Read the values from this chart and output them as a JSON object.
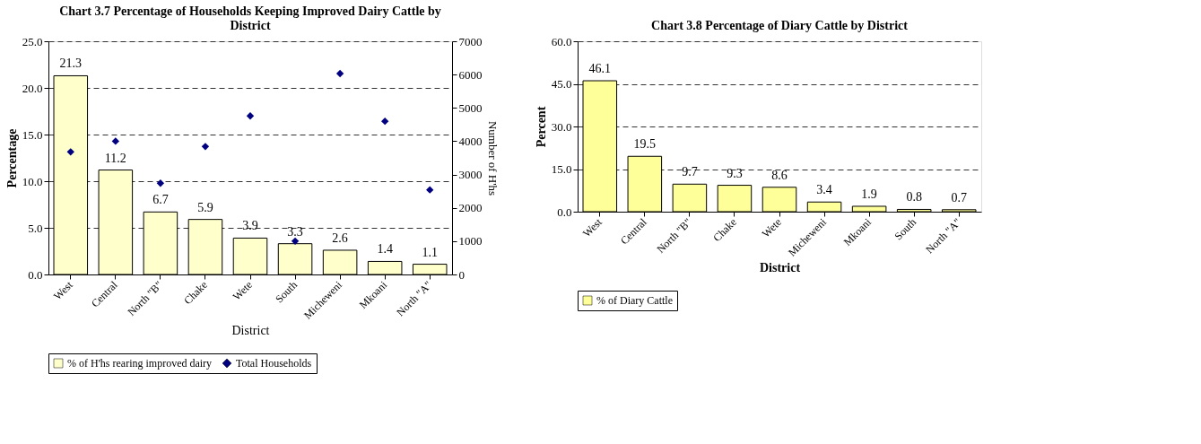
{
  "chart_data": [
    {
      "type": "bar",
      "title": "Chart 3.7  Percentage of Households Keeping Improved Dairy Cattle by District",
      "xlabel": "District",
      "ylabel": "Percentage",
      "y2label": "Number of H'hs",
      "categories": [
        "West",
        "Central",
        "North \"B\"",
        "Chake",
        "Wete",
        "South",
        "Micheweni",
        "Mkoani",
        "North \"A\""
      ],
      "series": [
        {
          "name": "% of H'hs rearing improved dairy",
          "type": "bar",
          "color": "#ffffcc",
          "values": [
            21.3,
            11.2,
            6.7,
            5.9,
            3.9,
            3.3,
            2.6,
            1.4,
            1.1
          ],
          "value_labels": [
            "21.3",
            "11.2",
            "6.7",
            "5.9",
            "3.9",
            "3.3",
            "2.6",
            "1.4",
            "1.1"
          ]
        },
        {
          "name": "Total Households",
          "type": "scatter",
          "axis": "y2",
          "marker": "diamond",
          "color": "#000080",
          "values": [
            3680,
            4000,
            2740,
            3840,
            4760,
            1000,
            6030,
            4600,
            2540
          ]
        }
      ],
      "ylim": [
        0,
        25
      ],
      "yticks": [
        {
          "value": 0,
          "label": "0.0"
        },
        {
          "value": 5,
          "label": "5.0"
        },
        {
          "value": 10,
          "label": "10.0"
        },
        {
          "value": 15,
          "label": "15.0"
        },
        {
          "value": 20,
          "label": "20.0"
        },
        {
          "value": 25,
          "label": "25.0"
        }
      ],
      "y2lim": [
        0,
        7000
      ],
      "y2ticks": [
        0,
        1000,
        2000,
        3000,
        4000,
        5000,
        6000,
        7000
      ],
      "grid": "y",
      "legend": "bottom"
    },
    {
      "type": "bar",
      "title": "Chart 3.8 Percentage of Diary Cattle by District",
      "xlabel": "District",
      "ylabel": "Percent",
      "categories": [
        "West",
        "Central",
        "North \"B\"",
        "Chake",
        "Wete",
        "Micheweni",
        "Mkoani",
        "South",
        "North \"A\""
      ],
      "series": [
        {
          "name": "% of Diary Cattle",
          "color": "#ffff99",
          "values": [
            46.1,
            19.5,
            9.7,
            9.3,
            8.6,
            3.4,
            1.9,
            0.8,
            0.7
          ]
        }
      ],
      "data_labels": true,
      "ylim": [
        0,
        60
      ],
      "yticks": [
        {
          "value": 0,
          "label": "0.0"
        },
        {
          "value": 15,
          "label": "15.0"
        },
        {
          "value": 30,
          "label": "30.0"
        },
        {
          "value": 45,
          "label": "45.0"
        },
        {
          "value": 60,
          "label": "60.0"
        }
      ],
      "grid": "y",
      "legend": "bottom"
    }
  ]
}
